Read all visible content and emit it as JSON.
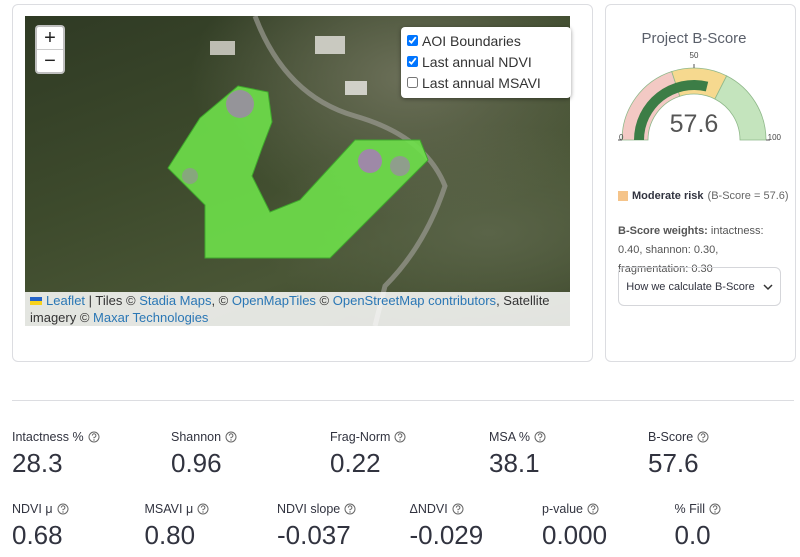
{
  "map": {
    "zoom_in": "+",
    "zoom_out": "−",
    "layers": [
      {
        "label": "AOI Boundaries",
        "checked": true
      },
      {
        "label": "Last annual NDVI",
        "checked": true
      },
      {
        "label": "Last annual MSAVI",
        "checked": false
      }
    ],
    "attribution": [
      {
        "text": "Leaflet",
        "link": true
      },
      {
        "text": " | Tiles © ",
        "link": false
      },
      {
        "text": "Stadia Maps",
        "link": true
      },
      {
        "text": ", © ",
        "link": false
      },
      {
        "text": "OpenMapTiles",
        "link": true
      },
      {
        "text": " © ",
        "link": false
      },
      {
        "text": "OpenStreetMap contributors",
        "link": true
      },
      {
        "text": ", Satellite imagery © ",
        "link": false
      },
      {
        "text": "Maxar Technologies",
        "link": true
      }
    ]
  },
  "gauge": {
    "title": "Project B-Score",
    "value": 57.6,
    "min": 0,
    "max": 100,
    "ticks": [
      0,
      50,
      100
    ],
    "bar_color": "#3c7d46",
    "bands": [
      {
        "from": 0,
        "to": 40,
        "color": "#f3c9c4"
      },
      {
        "from": 40,
        "to": 65,
        "color": "#f6d98f"
      },
      {
        "from": 65,
        "to": 100,
        "color": "#c4e4bd"
      }
    ]
  },
  "risk": {
    "label": "Moderate risk",
    "detail": "(B-Score = 57.6)",
    "color": "#f5c48a"
  },
  "weights": {
    "label": "B-Score weights:",
    "text": "intactness: 0.40, shannon: 0.30, fragmentation: 0.30"
  },
  "expander": "How we calculate B-Score",
  "metrics": [
    [
      {
        "label": "Intactness %",
        "value": "28.3"
      },
      {
        "label": "Shannon",
        "value": "0.96"
      },
      {
        "label": "Frag-Norm",
        "value": "0.22"
      },
      {
        "label": "MSA %",
        "value": "38.1"
      },
      {
        "label": "B-Score",
        "value": "57.6"
      }
    ],
    [
      {
        "label": "NDVI μ",
        "value": "0.68"
      },
      {
        "label": "MSAVI μ",
        "value": "0.80"
      },
      {
        "label": "NDVI slope",
        "value": "-0.037"
      },
      {
        "label": "ΔNDVI",
        "value": "-0.029"
      },
      {
        "label": "p-value",
        "value": "0.000"
      },
      {
        "label": "% Fill",
        "value": "0.0"
      }
    ]
  ]
}
